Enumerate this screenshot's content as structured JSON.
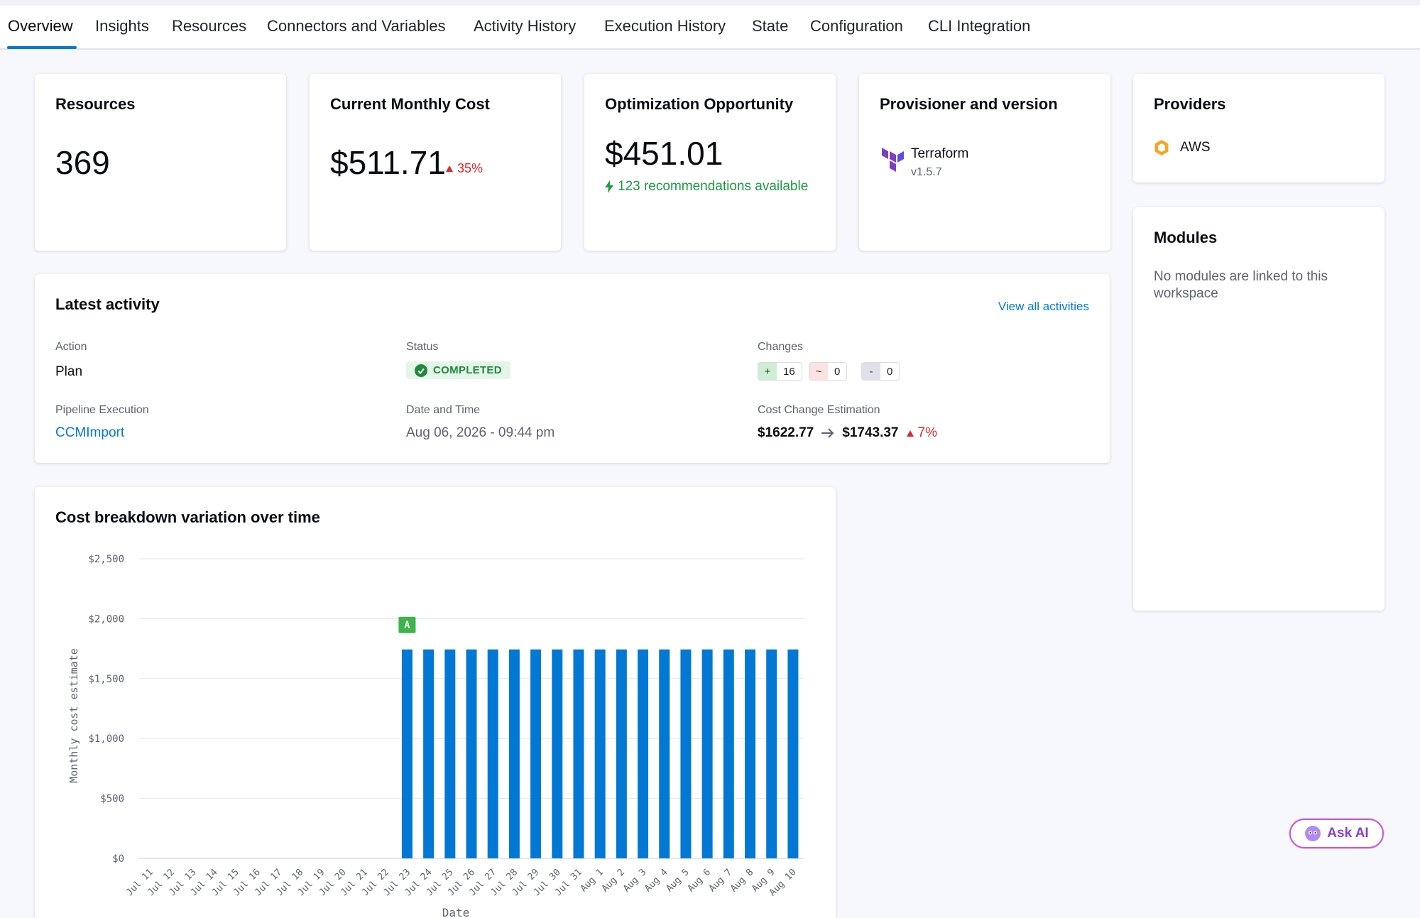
{
  "tabs": [
    {
      "label": "Overview",
      "active": true
    },
    {
      "label": "Insights"
    },
    {
      "label": "Resources"
    },
    {
      "label": "Connectors and Variables"
    },
    {
      "label": "Activity History"
    },
    {
      "label": "Execution History"
    },
    {
      "label": "State"
    },
    {
      "label": "Configuration"
    },
    {
      "label": "CLI Integration"
    }
  ],
  "summary": {
    "resources": {
      "title": "Resources",
      "value": "369"
    },
    "monthly_cost": {
      "title": "Current Monthly Cost",
      "value": "$511.71",
      "delta": "35%"
    },
    "optimization": {
      "title": "Optimization Opportunity",
      "value": "$451.01",
      "recommendations": "123 recommendations available"
    },
    "provisioner": {
      "title": "Provisioner and version",
      "name": "Terraform",
      "version": "v1.5.7"
    },
    "providers": {
      "title": "Providers",
      "items": [
        {
          "name": "AWS",
          "icon": "aws-hexagon-icon"
        }
      ]
    },
    "modules": {
      "title": "Modules",
      "empty_text": "No modules are linked to this workspace"
    }
  },
  "activity": {
    "title": "Latest activity",
    "view_all": "View all activities",
    "action_label": "Action",
    "action_value": "Plan",
    "status_label": "Status",
    "status_value": "COMPLETED",
    "changes_label": "Changes",
    "changes": [
      {
        "symbol": "+",
        "count": "16"
      },
      {
        "symbol": "~",
        "count": "0"
      },
      {
        "symbol": "-",
        "count": "0"
      }
    ],
    "pipeline_label": "Pipeline Execution",
    "pipeline_value": "CCMImport",
    "datetime_label": "Date and Time",
    "datetime_value": "Aug 06, 2026 - 09:44 pm",
    "cost_label": "Cost Change Estimation",
    "cost_from": "$1622.77",
    "cost_to": "$1743.37",
    "cost_delta": "7%"
  },
  "chart_title": "Cost breakdown variation over time",
  "chart_data": {
    "type": "bar",
    "xlabel": "Date",
    "ylabel": "Monthly cost estimate",
    "ylim": [
      0,
      2500
    ],
    "yticks": [
      "$0",
      "$500",
      "$1,000",
      "$1,500",
      "$2,000",
      "$2,500"
    ],
    "grid": true,
    "categories": [
      "Jul 11",
      "Jul 12",
      "Jul 13",
      "Jul 14",
      "Jul 15",
      "Jul 16",
      "Jul 17",
      "Jul 18",
      "Jul 19",
      "Jul 20",
      "Jul 21",
      "Jul 22",
      "Jul 23",
      "Jul 24",
      "Jul 25",
      "Jul 26",
      "Jul 27",
      "Jul 28",
      "Jul 29",
      "Jul 30",
      "Jul 31",
      "Aug 1",
      "Aug 2",
      "Aug 3",
      "Aug 4",
      "Aug 5",
      "Aug 6",
      "Aug 7",
      "Aug 8",
      "Aug 9",
      "Aug 10"
    ],
    "values": [
      0,
      0,
      0,
      0,
      0,
      0,
      0,
      0,
      0,
      0,
      0,
      0,
      1743.37,
      1743.37,
      1743.37,
      1743.37,
      1743.37,
      1743.37,
      1743.37,
      1743.37,
      1743.37,
      1743.37,
      1743.37,
      1743.37,
      1743.37,
      1743.37,
      1743.37,
      1743.37,
      1743.37,
      1743.37,
      1743.37
    ],
    "color": "#0278d5",
    "annotations": [
      {
        "category": "Jul 23",
        "label": "A"
      }
    ]
  },
  "ask_ai": {
    "label": "Ask AI"
  },
  "colors": {
    "accent": "#0278d5",
    "success": "#1f9a45",
    "danger": "#d92b2b"
  }
}
